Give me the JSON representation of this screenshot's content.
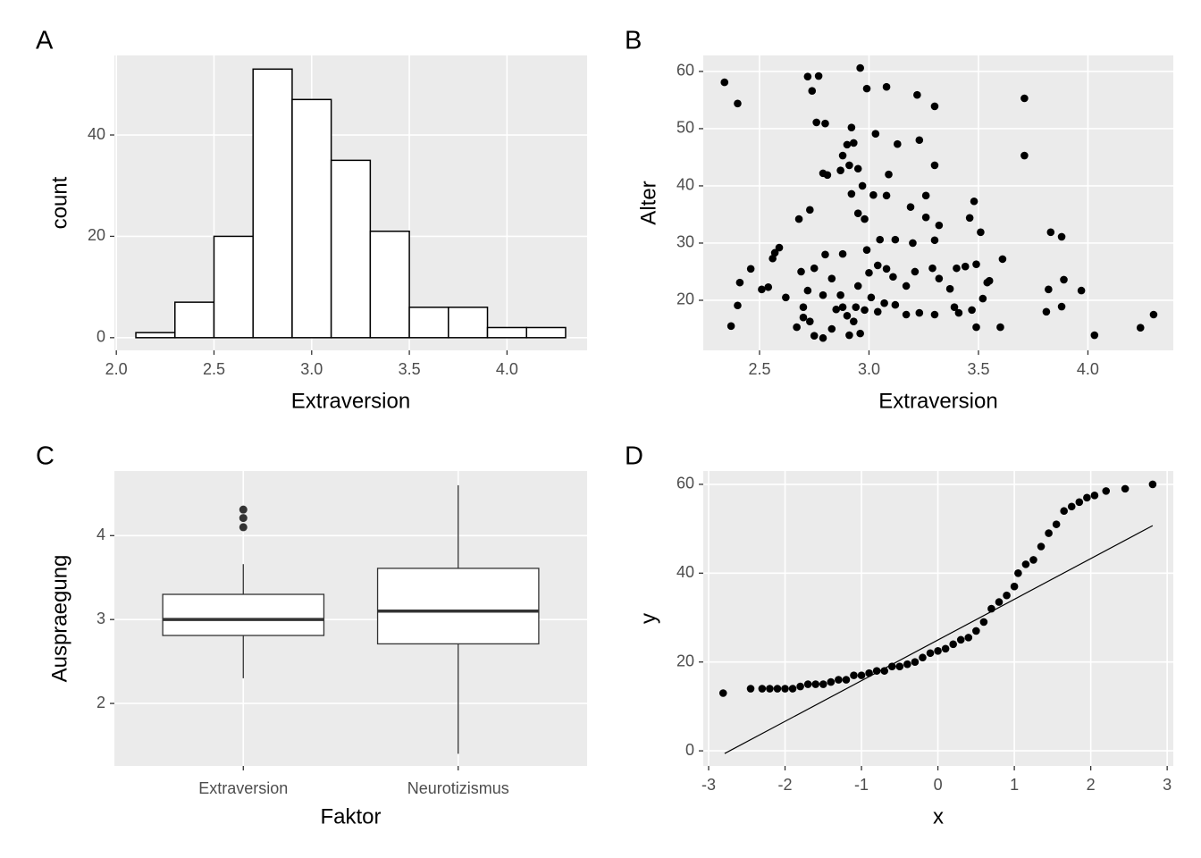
{
  "chart_data": [
    {
      "type": "histogram",
      "tag": "A",
      "x_label": "Extraversion",
      "y_label": "count",
      "bins": [
        2.1,
        2.3,
        2.5,
        2.7,
        2.9,
        3.1,
        3.3,
        3.5,
        3.7,
        3.9,
        4.1,
        4.3
      ],
      "values": [
        1,
        7,
        20,
        53,
        47,
        35,
        21,
        6,
        6,
        2,
        2
      ],
      "color": "#ffffff",
      "edge_color": "#000000",
      "xlim": [
        1.99,
        4.41
      ],
      "ylim": [
        -2.5,
        55.7
      ],
      "xticks": [
        {
          "value": 2.0,
          "label": "2.0"
        },
        2.5,
        {
          "value": 3.0,
          "label": "3.0"
        },
        3.5,
        {
          "value": 4.0,
          "label": "4.0"
        }
      ],
      "yticks": [
        0,
        20,
        40
      ],
      "grid": true
    },
    {
      "type": "scatter",
      "tag": "B",
      "x_label": "Extraversion",
      "y_label": "Alter",
      "color": "#000000",
      "x": [
        2.34,
        2.4,
        2.37,
        2.41,
        2.4,
        2.46,
        2.51,
        2.54,
        2.56,
        2.57,
        2.59,
        2.68,
        2.67,
        2.69,
        2.7,
        2.72,
        2.74,
        2.73,
        2.77,
        2.76,
        2.8,
        2.79,
        2.81,
        2.87,
        2.88,
        2.9,
        2.91,
        2.92,
        2.93,
        2.95,
        2.96,
        2.99,
        2.97,
        2.92,
        2.95,
        2.98,
        3.02,
        3.03,
        3.08,
        3.09,
        3.08,
        3.13,
        3.23,
        3.22,
        3.3,
        3.3,
        3.26,
        3.19,
        3.26,
        3.32,
        3.2,
        3.3,
        3.48,
        3.46,
        3.51,
        3.49,
        3.61,
        3.71,
        3.71,
        3.83,
        3.88,
        3.89,
        3.82,
        3.88,
        3.81,
        3.97,
        4.03,
        4.24,
        4.3,
        3.6,
        3.49,
        3.52,
        3.55,
        3.47,
        3.41,
        3.3,
        3.23,
        3.17,
        3.12,
        3.07,
        3.01,
        2.98,
        2.96,
        2.91,
        2.83,
        2.79,
        2.75,
        2.73,
        2.7,
        2.72,
        2.79,
        2.83,
        2.87,
        2.88,
        2.9,
        2.94,
        2.95,
        3.0,
        3.04,
        3.08,
        3.11,
        3.17,
        3.21,
        3.29,
        3.32,
        3.37,
        3.4,
        3.44,
        3.39,
        3.12,
        3.05,
        2.99,
        2.62,
        2.75,
        2.8,
        2.88,
        2.85,
        2.93,
        3.54,
        3.04
      ],
      "y": [
        58.1,
        54.4,
        15.5,
        23.1,
        19.1,
        25.5,
        21.9,
        22.3,
        27.3,
        28.3,
        29.2,
        34.2,
        15.3,
        25.0,
        17.0,
        59.1,
        56.6,
        35.8,
        59.2,
        51.1,
        50.9,
        42.2,
        41.9,
        42.7,
        45.3,
        47.2,
        43.6,
        50.2,
        47.5,
        43.0,
        60.6,
        57.0,
        40.0,
        38.6,
        35.2,
        34.2,
        38.4,
        49.1,
        57.3,
        42.0,
        38.3,
        47.3,
        48.0,
        55.9,
        53.9,
        43.6,
        38.3,
        36.3,
        34.5,
        33.1,
        30.0,
        30.5,
        37.3,
        34.4,
        31.9,
        26.3,
        27.2,
        55.3,
        45.3,
        31.9,
        31.1,
        23.6,
        21.9,
        18.9,
        18.0,
        21.7,
        13.9,
        15.2,
        17.5,
        15.3,
        15.3,
        20.3,
        23.4,
        18.3,
        17.8,
        17.5,
        17.8,
        17.5,
        19.2,
        19.5,
        20.5,
        18.3,
        14.2,
        13.9,
        15.0,
        13.4,
        13.8,
        16.3,
        18.8,
        21.7,
        20.9,
        23.8,
        20.9,
        18.8,
        17.3,
        18.8,
        22.5,
        24.8,
        26.1,
        25.5,
        24.1,
        22.5,
        25.0,
        25.6,
        23.8,
        22.0,
        25.6,
        25.9,
        18.8,
        30.6,
        30.6,
        28.8,
        20.5,
        25.6,
        28.0,
        28.1,
        18.4,
        16.3,
        23.1,
        18.0
      ],
      "xlim": [
        2.243,
        4.39
      ],
      "ylim": [
        11.25,
        62.8
      ],
      "xticks": [
        2.5,
        {
          "value": 3.0,
          "label": "3.0"
        },
        3.5,
        {
          "value": 4.0,
          "label": "4.0"
        }
      ],
      "yticks": [
        20,
        30,
        40,
        50,
        60
      ],
      "grid": true
    },
    {
      "type": "box",
      "tag": "C",
      "x_label": "Faktor",
      "y_label": "Auspraegung",
      "color": "#333333",
      "categories": [
        "Extraversion",
        "Neurotizismus"
      ],
      "boxes": [
        {
          "whislo": 2.3,
          "q1": 2.81,
          "med": 3.0,
          "q3": 3.3,
          "whishi": 3.66,
          "fliers": [
            4.1,
            4.21,
            4.31
          ]
        },
        {
          "whislo": 1.4,
          "q1": 2.71,
          "med": 3.1,
          "q3": 3.61,
          "whishi": 4.6,
          "fliers": []
        }
      ],
      "ylim": [
        1.255,
        4.77
      ],
      "yticks": [
        2,
        3,
        4
      ],
      "grid": true
    },
    {
      "type": "qq",
      "tag": "D",
      "x_label": "x",
      "y_label": "y",
      "color": "#000000",
      "x": [
        -2.81,
        -2.45,
        -2.3,
        -2.2,
        -2.1,
        -2.0,
        -1.9,
        -1.8,
        -1.7,
        -1.6,
        -1.5,
        -1.4,
        -1.3,
        -1.2,
        -1.1,
        -1.0,
        -0.9,
        -0.8,
        -0.7,
        -0.6,
        -0.5,
        -0.4,
        -0.3,
        -0.2,
        -0.1,
        0,
        0.1,
        0.2,
        0.3,
        0.4,
        0.5,
        0.6,
        0.7,
        0.8,
        0.9,
        1.0,
        1.05,
        1.15,
        1.25,
        1.35,
        1.45,
        1.55,
        1.65,
        1.75,
        1.85,
        1.95,
        2.05,
        2.2,
        2.45,
        2.81
      ],
      "y": [
        13,
        14,
        14,
        14,
        14,
        14,
        14,
        14.5,
        15,
        15,
        15,
        15.5,
        16,
        16,
        17,
        17,
        17.5,
        18,
        18,
        19,
        19,
        19.5,
        20,
        21,
        22,
        22.5,
        23,
        24,
        25,
        25.5,
        27,
        29,
        32,
        33.5,
        35,
        37,
        40,
        42,
        43,
        46,
        49,
        51,
        54,
        55,
        56,
        57,
        57.5,
        58.5,
        59,
        60
      ],
      "line": {
        "x": [
          -2.79,
          2.81
        ],
        "y": [
          -0.6,
          50.7
        ]
      },
      "xlim": [
        -3.07,
        3.08
      ],
      "ylim": [
        -3.4,
        63.0
      ],
      "xticks": [
        -3,
        -2,
        -1,
        0,
        1,
        2,
        3
      ],
      "yticks": [
        0,
        20,
        40,
        60
      ],
      "grid": true
    }
  ]
}
